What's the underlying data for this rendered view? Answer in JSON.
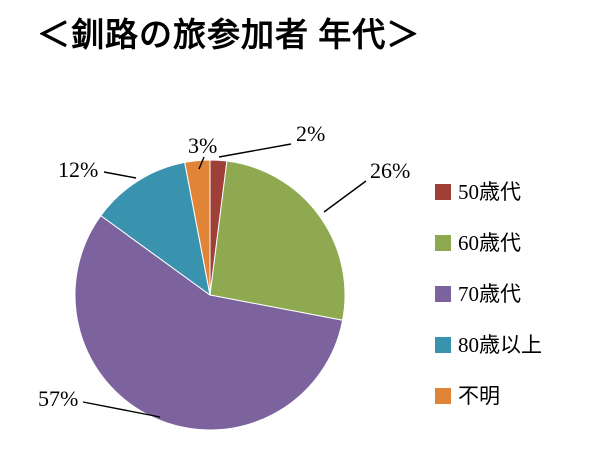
{
  "chart_data": {
    "type": "pie",
    "title": "＜釧路の旅参加者 年代＞",
    "categories": [
      "50歳代",
      "60歳代",
      "70歳代",
      "80歳以上",
      "不明"
    ],
    "values": [
      2,
      26,
      57,
      12,
      3
    ],
    "labels": [
      "2%",
      "26%",
      "57%",
      "12%",
      "3%"
    ],
    "colors": [
      "#9E4038",
      "#8EA950",
      "#7D639E",
      "#3A93AE",
      "#E08438"
    ],
    "unit": "%",
    "legend_position": "right",
    "start_angle_deg": 0,
    "direction": "clockwise"
  }
}
